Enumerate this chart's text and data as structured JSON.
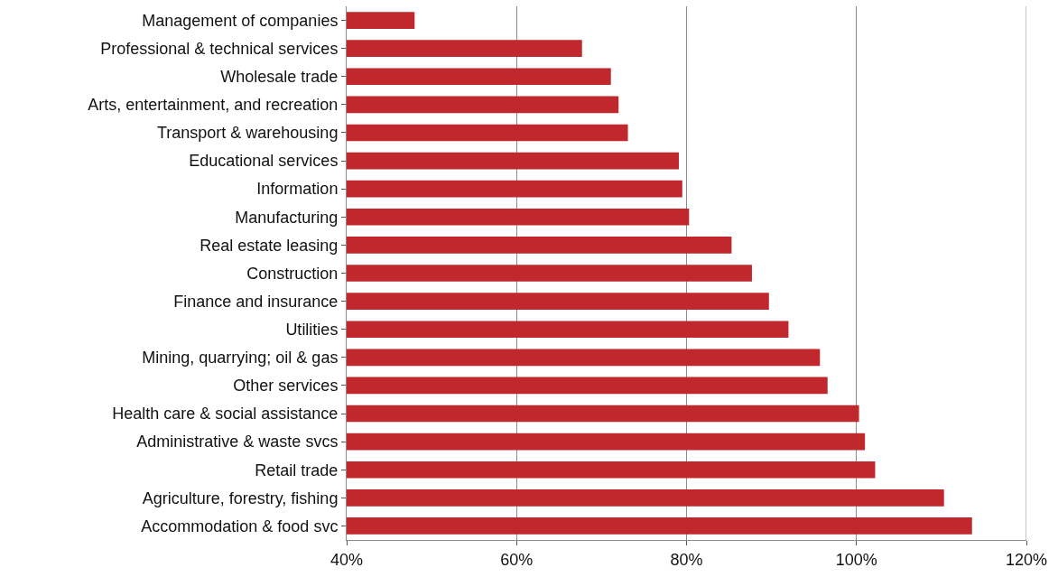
{
  "chart_data": {
    "type": "bar",
    "orientation": "horizontal",
    "categories": [
      "Management of companies",
      "Professional & technical services",
      "Wholesale trade",
      "Arts, entertainment, and recreation",
      "Transport & warehousing",
      "Educational services",
      "Information",
      "Manufacturing",
      "Real estate leasing",
      "Construction",
      "Finance and insurance",
      "Utilities",
      "Mining, quarrying; oil & gas",
      "Other services",
      "Health care & social assistance",
      "Administrative & waste svcs",
      "Retail trade",
      "Agriculture, forestry, fishing",
      "Accommodation & food svc"
    ],
    "values": [
      48.0,
      67.7,
      71.1,
      72.0,
      73.1,
      79.1,
      79.5,
      80.3,
      85.3,
      87.7,
      89.7,
      92.0,
      95.7,
      96.6,
      100.3,
      101.0,
      102.2,
      110.3,
      113.6
    ],
    "color": "#c0282d",
    "xlim": [
      40,
      120
    ],
    "xticks": [
      {
        "value": 40,
        "label": "40%"
      },
      {
        "value": 60,
        "label": "60%"
      },
      {
        "value": 80,
        "label": "80%"
      },
      {
        "value": 100,
        "label": "100%"
      },
      {
        "value": 120,
        "label": "120%"
      }
    ],
    "grid": "x"
  }
}
